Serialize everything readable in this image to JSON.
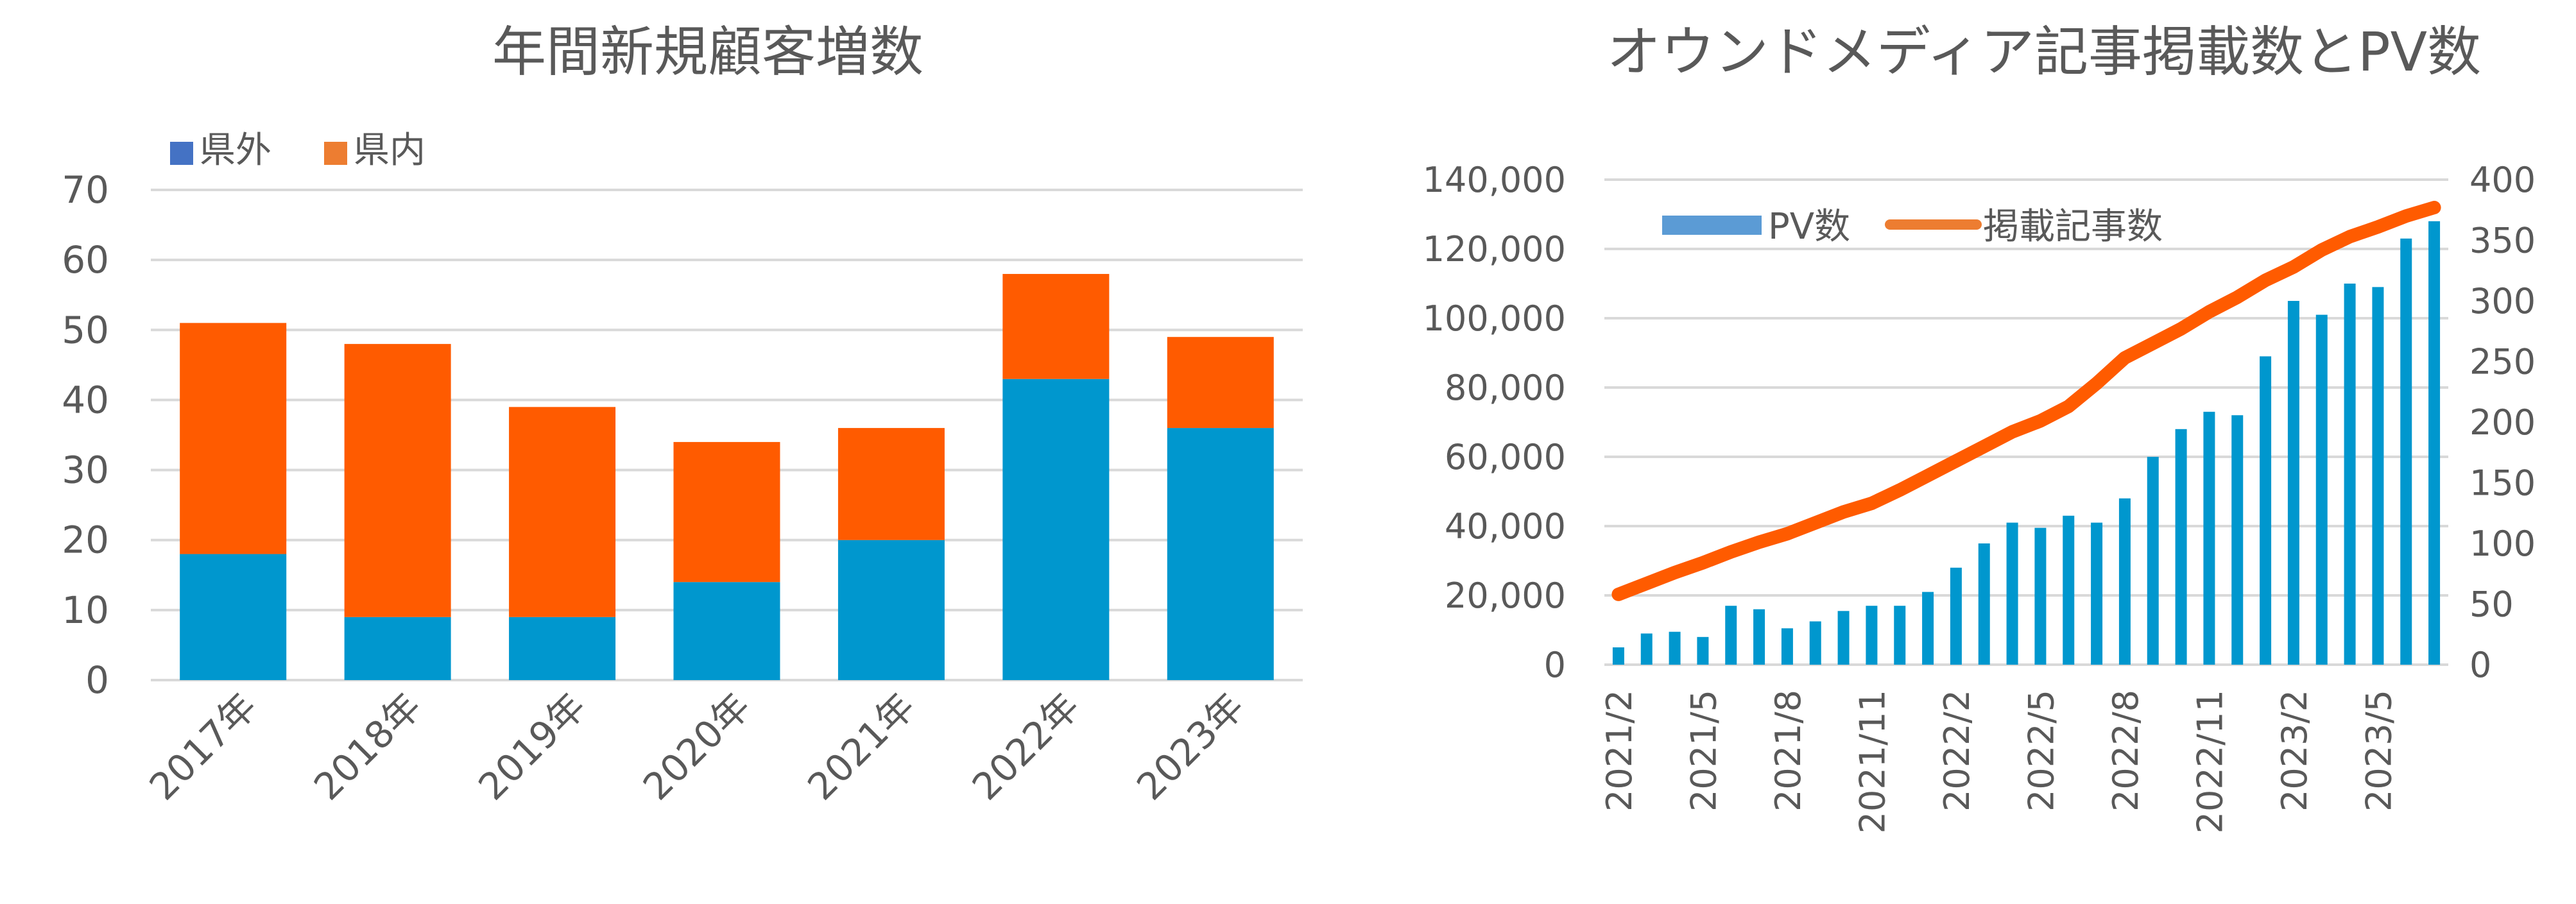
{
  "chart_data": [
    {
      "type": "bar",
      "stacked": true,
      "title": "年間新規顧客増数",
      "categories": [
        "2017年",
        "2018年",
        "2019年",
        "2020年",
        "2021年",
        "2022年",
        "2023年"
      ],
      "series": [
        {
          "name": "県外",
          "values": [
            18,
            9,
            9,
            14,
            20,
            43,
            36
          ],
          "color": "#0097CE",
          "legend_color": "#4472C4"
        },
        {
          "name": "県内",
          "values": [
            33,
            39,
            30,
            20,
            16,
            15,
            13
          ],
          "color": "#FF5B00",
          "legend_color": "#ED7D31"
        }
      ],
      "ylim": [
        0,
        70
      ],
      "yticks": [
        "0",
        "10",
        "20",
        "30",
        "40",
        "50",
        "60",
        "70"
      ],
      "grid": true,
      "legend": "top-left"
    },
    {
      "type": "bar",
      "combo": "bar+line",
      "title": "オウンドメディア記事掲載数とPV数",
      "x": [
        "2021/2",
        "2021/3",
        "2021/4",
        "2021/5",
        "2021/6",
        "2021/7",
        "2021/8",
        "2021/9",
        "2021/10",
        "2021/11",
        "2021/12",
        "2022/1",
        "2022/2",
        "2022/3",
        "2022/4",
        "2022/5",
        "2022/6",
        "2022/7",
        "2022/8",
        "2022/9",
        "2022/10",
        "2022/11",
        "2022/12",
        "2023/1",
        "2023/2",
        "2023/3",
        "2023/4",
        "2023/5",
        "2023/6",
        "2023/7"
      ],
      "xtick_labels": [
        "2021/2",
        "2021/5",
        "2021/8",
        "2021/11",
        "2022/2",
        "2022/5",
        "2022/8",
        "2022/11",
        "2023/2",
        "2023/5"
      ],
      "series": [
        {
          "name": "PV数",
          "kind": "bar",
          "axis": "left",
          "color": "#0097CE",
          "legend_color": "#5B9BD5",
          "values": [
            5000,
            9000,
            9500,
            8000,
            17000,
            16000,
            10500,
            12500,
            15500,
            17000,
            17000,
            21000,
            28000,
            35000,
            41000,
            39500,
            43000,
            41000,
            48000,
            60000,
            68000,
            73000,
            72000,
            89000,
            105000,
            101000,
            110000,
            109000,
            123000,
            128000
          ]
        },
        {
          "name": "掲載記事数",
          "kind": "line",
          "axis": "right",
          "color": "#FF5B00",
          "legend_color": "#ED7D31",
          "values": [
            58,
            67,
            76,
            84,
            93,
            101,
            108,
            117,
            126,
            133,
            144,
            156,
            168,
            180,
            192,
            201,
            213,
            232,
            253,
            265,
            277,
            291,
            303,
            317,
            328,
            342,
            353,
            361,
            370,
            377
          ]
        }
      ],
      "ylim_left": [
        0,
        140000
      ],
      "ylim_right": [
        0,
        400
      ],
      "yticks_left": [
        "0",
        "20,000",
        "40,000",
        "60,000",
        "80,000",
        "100,000",
        "120,000",
        "140,000"
      ],
      "yticks_right": [
        "0",
        "50",
        "100",
        "150",
        "200",
        "250",
        "300",
        "350",
        "400"
      ],
      "grid": true,
      "legend": "top-left"
    }
  ]
}
